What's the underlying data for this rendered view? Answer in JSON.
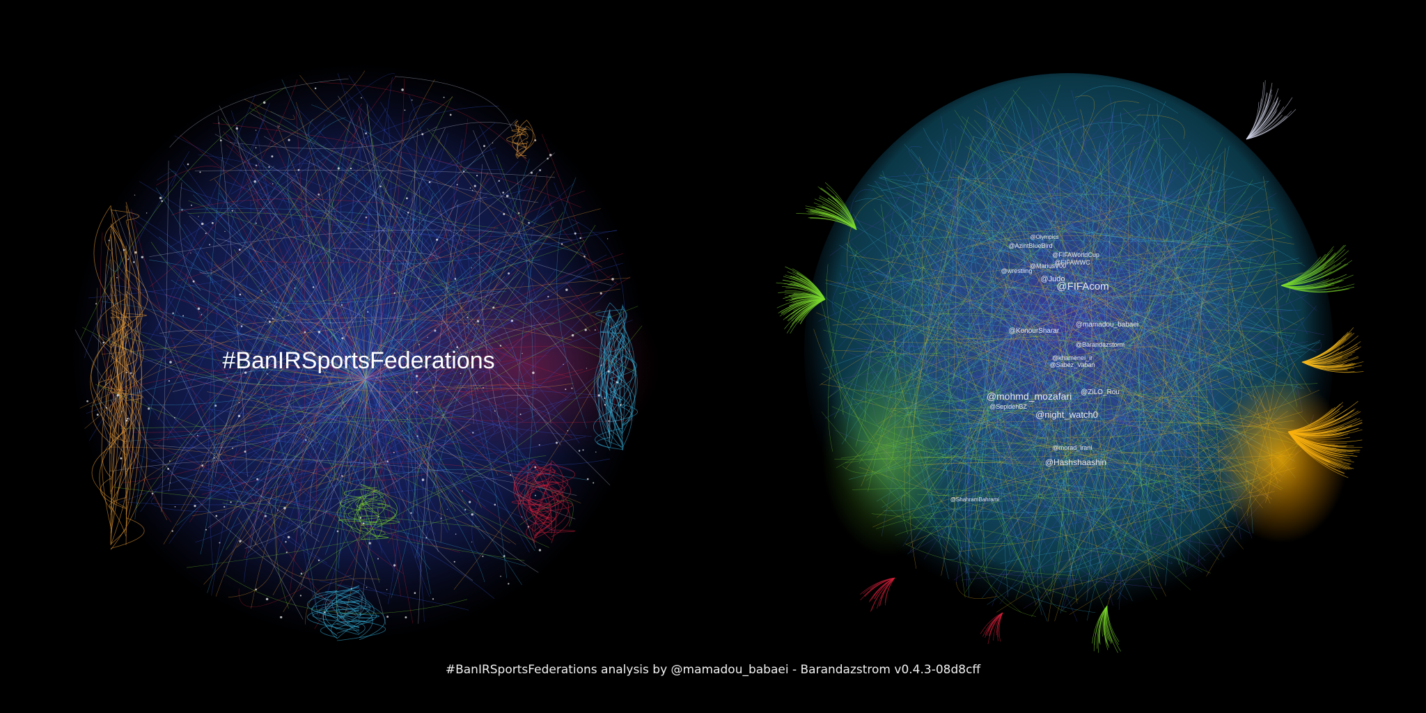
{
  "colors": {
    "background": "#000000",
    "community_blue": "#3a56d8",
    "community_cyan": "#37b6e0",
    "community_orange": "#f0a23a",
    "community_green": "#7ddc2c",
    "community_red": "#d8203c",
    "community_yellow": "#f6b81a",
    "community_violet": "#5a3fb8",
    "community_white": "#cfd3e6"
  },
  "left_graph": {
    "title": "#BanIRSportsFederations"
  },
  "right_graph": {
    "labels": [
      "@AzintBlueBird",
      "@FIFAWorldCup",
      "@FIFAWWC",
      "@MariusV00",
      "@wrestling",
      "@Judo",
      "@FIFAcom",
      "@KonourSharar",
      "@mamadou_babaei",
      "@Barandazstorm",
      "@khamenei_ir",
      "@Sabez_Vaban",
      "@ZiLO_Rou",
      "@mohmd_mozafari",
      "@SepidehBZ",
      "@night_watch0",
      "@morad_irani",
      "@Hashshaashin",
      "@ShahramBahrami",
      "@Olympics"
    ]
  },
  "footer": {
    "caption": "#BanIRSportsFederations analysis by @mamadou_babaei - Barandazstrom v0.4.3-08d8cff"
  }
}
